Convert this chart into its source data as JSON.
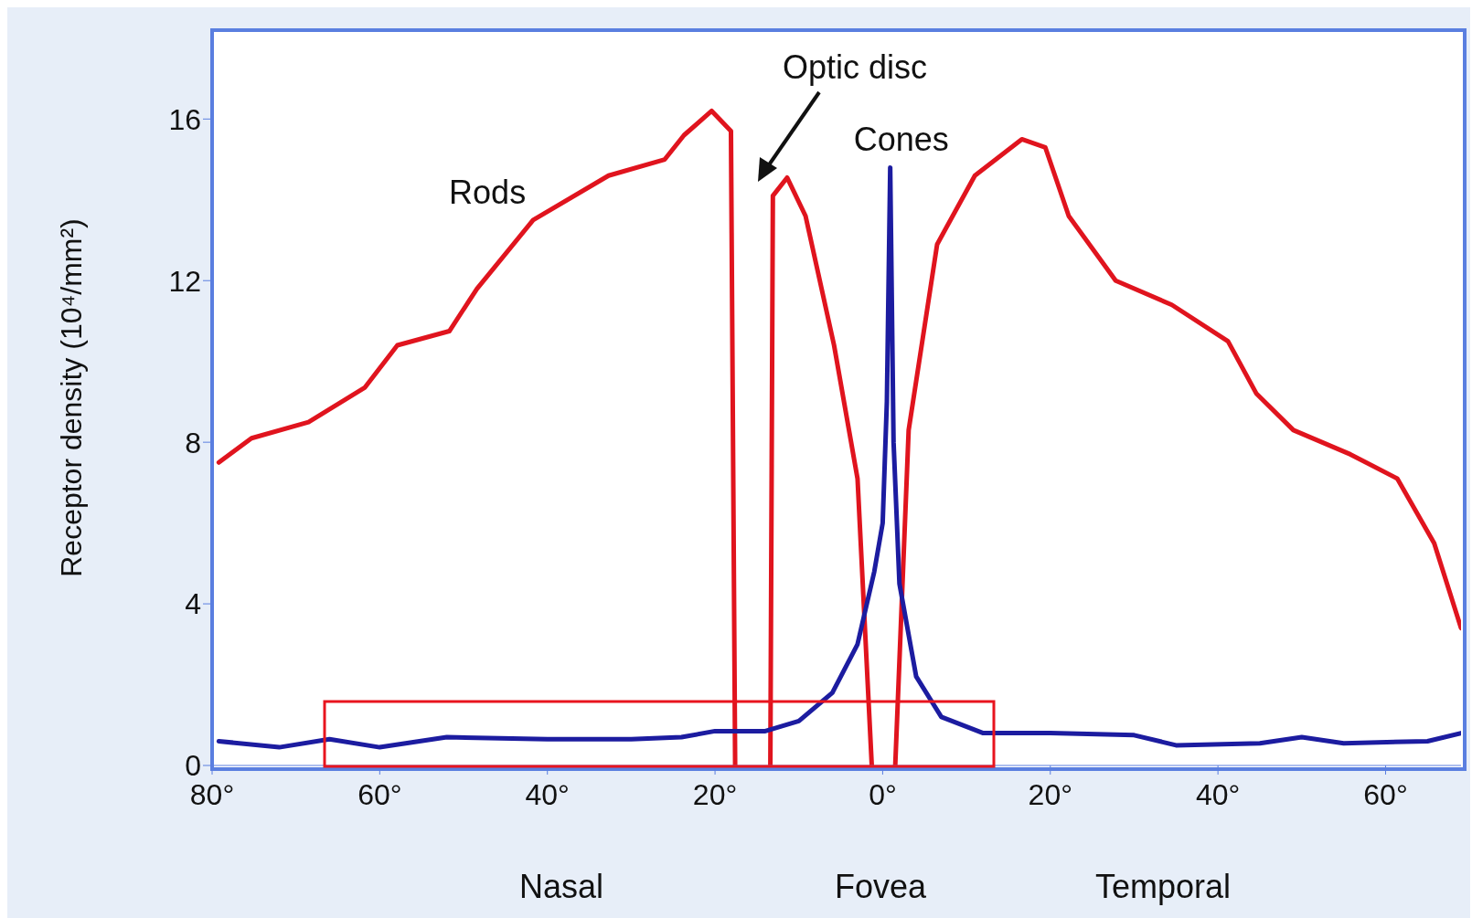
{
  "chart_data": {
    "type": "line",
    "ylabel": "Receptor density (10⁴/mm²)",
    "xlim": [
      -80,
      69
    ],
    "ylim": [
      0,
      18.2
    ],
    "xticks": [
      {
        "value": -80,
        "label": "80°"
      },
      {
        "value": -60,
        "label": "60°"
      },
      {
        "value": -40,
        "label": "40°"
      },
      {
        "value": -20,
        "label": "20°"
      },
      {
        "value": 0,
        "label": "0°"
      },
      {
        "value": 20,
        "label": "20°"
      },
      {
        "value": 40,
        "label": "40°"
      },
      {
        "value": 60,
        "label": "60°"
      }
    ],
    "yticks": [
      0,
      4,
      8,
      12,
      16
    ],
    "grid": false,
    "legend": false,
    "marker": "none",
    "line_style": "solid",
    "series": [
      {
        "name": "Rods",
        "color": "#e0141e",
        "x": [
          -79.2,
          -75.3,
          -68.5,
          -61.8,
          -57.9,
          -51.7,
          -48.4,
          -41.7,
          -32.7,
          -26,
          -23.7,
          -20.4,
          -18.1,
          -17.6,
          -15.5,
          -13.4,
          -13.1,
          -11.4,
          -9.2,
          -5.8,
          -3,
          -1.3,
          0,
          1.5,
          3.1,
          6.5,
          11,
          16.6,
          19.4,
          22.2,
          27.8,
          34.5,
          41.2,
          44.6,
          49,
          55.8,
          61.4,
          65.8,
          69
        ],
        "values": [
          7.5,
          8.1,
          8.5,
          9.35,
          10.4,
          10.75,
          11.8,
          13.5,
          14.6,
          15,
          15.6,
          16.2,
          15.7,
          0,
          null,
          0,
          14.1,
          14.55,
          13.6,
          10.4,
          7.1,
          0,
          null,
          0,
          8.3,
          12.9,
          14.6,
          15.5,
          15.3,
          13.6,
          12,
          11.4,
          10.5,
          9.2,
          8.3,
          7.7,
          7.1,
          5.5,
          3.4
        ]
      },
      {
        "name": "Cones",
        "color": "#1c1ca0",
        "x": [
          -79.2,
          -72,
          -66,
          -60,
          -52,
          -40,
          -30,
          -24,
          -20,
          -14,
          -10,
          -6,
          -3,
          -1,
          0,
          0.5,
          0.9,
          1.3,
          2,
          4,
          7,
          12,
          20,
          30,
          35,
          45,
          50,
          55,
          65,
          69
        ],
        "values": [
          0.6,
          0.45,
          0.65,
          0.45,
          0.7,
          0.65,
          0.65,
          0.7,
          0.85,
          0.85,
          1.1,
          1.8,
          3,
          4.8,
          6,
          9,
          14.8,
          8,
          4.5,
          2.2,
          1.2,
          0.8,
          0.8,
          0.75,
          0.5,
          0.55,
          0.7,
          0.55,
          0.6,
          0.8
        ]
      }
    ],
    "annotations": [
      "Optic disc",
      "Nasal",
      "Fovea",
      "Temporal"
    ]
  }
}
